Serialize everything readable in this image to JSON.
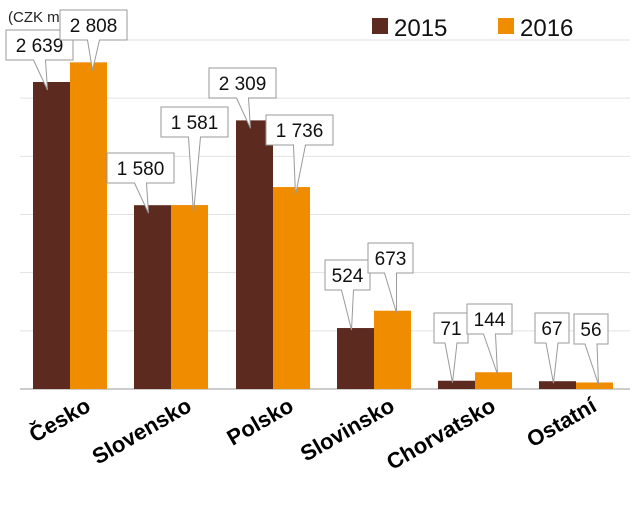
{
  "chart_data": {
    "type": "bar",
    "unit_label": "(CZK m)",
    "categories": [
      "Česko",
      "Slovensko",
      "Polsko",
      "Slovinsko",
      "Chorvatsko",
      "Ostatní"
    ],
    "series": [
      {
        "name": "2015",
        "color": "#5c2a1f",
        "values": [
          2639,
          1580,
          2309,
          524,
          71,
          67
        ],
        "labels": [
          "2 639",
          "1 580",
          "2 309",
          "524",
          "71",
          "67"
        ]
      },
      {
        "name": "2016",
        "color": "#f08c00",
        "values": [
          2808,
          1581,
          1736,
          673,
          144,
          56
        ],
        "labels": [
          "2 808",
          "1 581",
          "1 736",
          "673",
          "144",
          "56"
        ]
      }
    ],
    "ylim": [
      0,
      3000
    ],
    "gridlines": true,
    "legend_position": "top-right"
  }
}
